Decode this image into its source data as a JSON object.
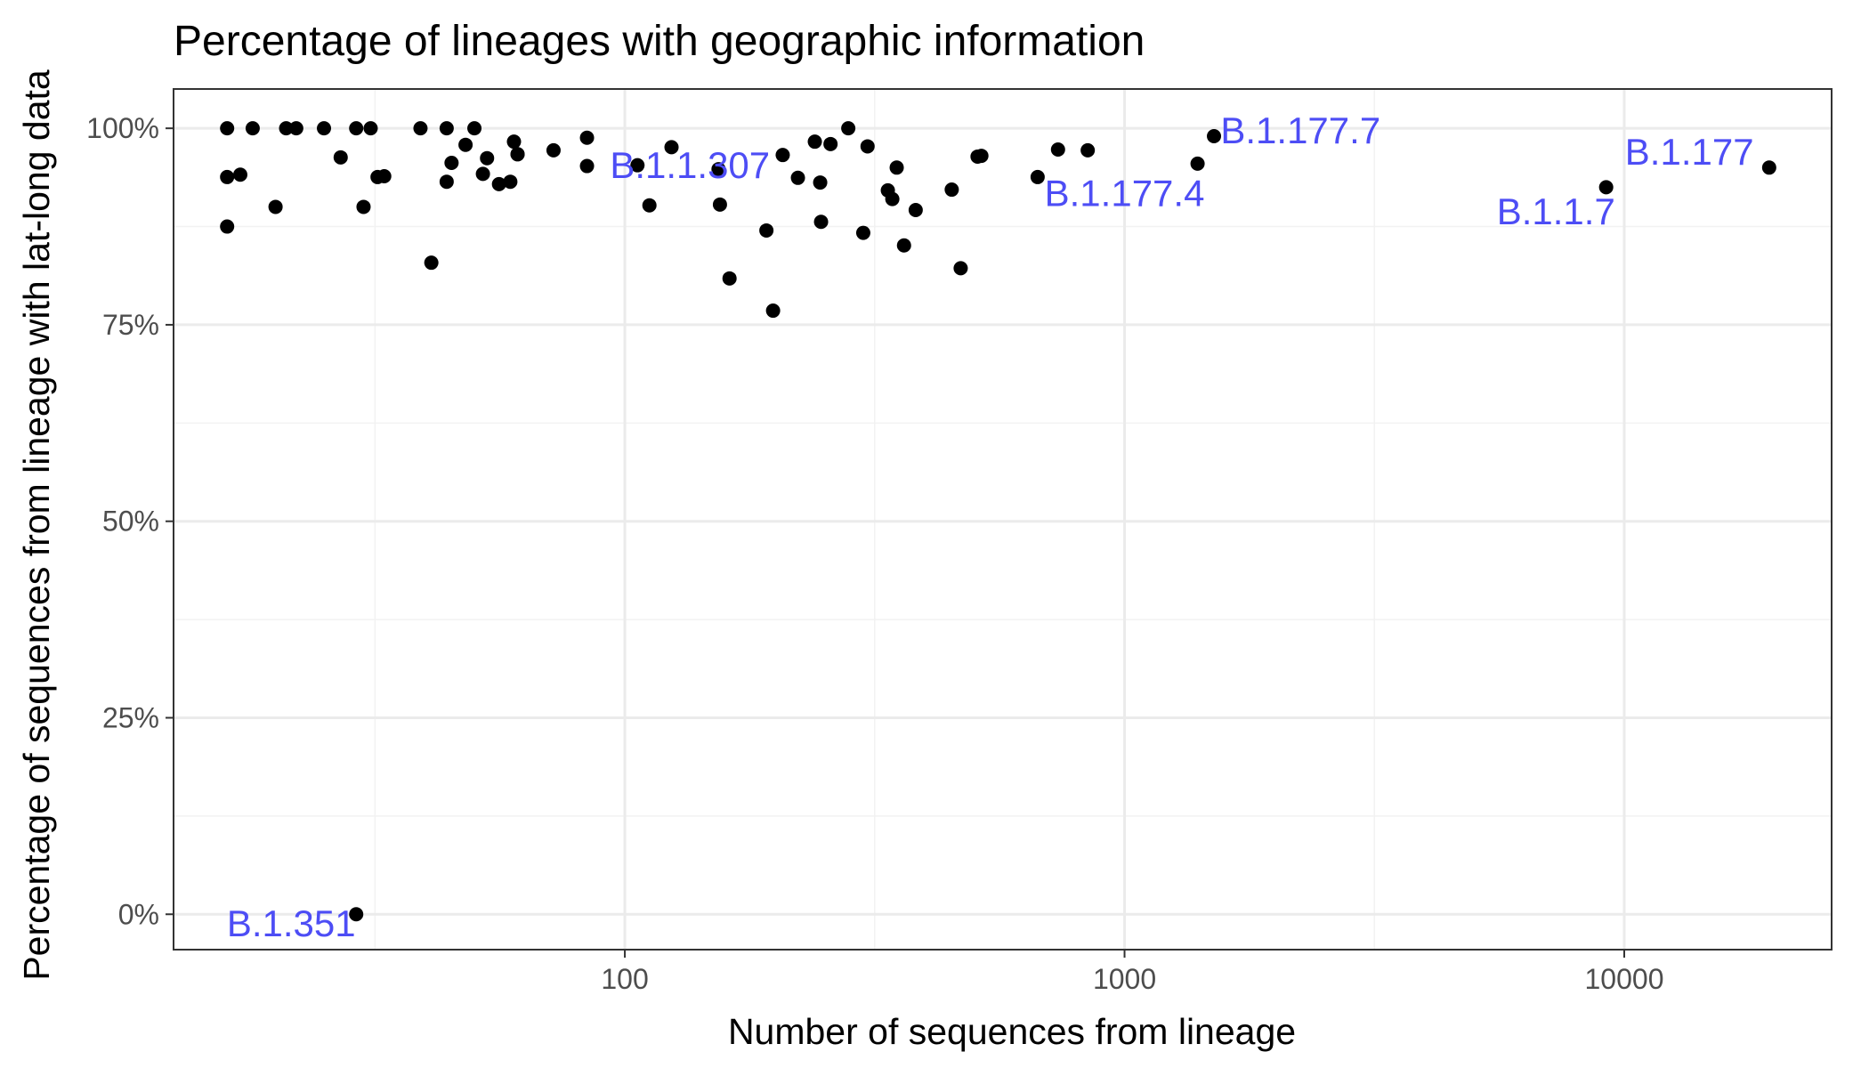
{
  "chart_data": {
    "type": "scatter",
    "title": "Percentage of lineages with geographic information",
    "xlabel": "Number of sequences from lineage",
    "ylabel": "Percentage of sequences from lineage with lat-long data",
    "x_scale": "log10",
    "xlim": [
      12.5,
      26000
    ],
    "ylim": [
      -4.5,
      105
    ],
    "x_ticks": [
      100,
      1000,
      10000
    ],
    "x_tick_labels": [
      "100",
      "1000",
      "10000"
    ],
    "y_ticks": [
      0,
      25,
      50,
      75,
      100
    ],
    "y_tick_labels": [
      "0%",
      "25%",
      "50%",
      "75%",
      "100%"
    ],
    "grid": true,
    "theme": "bw",
    "point_color": "#000000",
    "annotation_color": "#4d4df5",
    "points": [
      {
        "x": 16,
        "y": 100
      },
      {
        "x": 16,
        "y": 93.8
      },
      {
        "x": 16,
        "y": 87.5
      },
      {
        "x": 17,
        "y": 94.1
      },
      {
        "x": 18,
        "y": 100
      },
      {
        "x": 20,
        "y": 90
      },
      {
        "x": 21,
        "y": 100
      },
      {
        "x": 22,
        "y": 100
      },
      {
        "x": 25,
        "y": 100
      },
      {
        "x": 27,
        "y": 96.3
      },
      {
        "x": 29,
        "y": 100
      },
      {
        "x": 30,
        "y": 90
      },
      {
        "x": 31,
        "y": 100
      },
      {
        "x": 32,
        "y": 93.8
      },
      {
        "x": 33,
        "y": 93.9
      },
      {
        "x": 39,
        "y": 100
      },
      {
        "x": 41,
        "y": 82.9
      },
      {
        "x": 44,
        "y": 100
      },
      {
        "x": 44,
        "y": 93.2
      },
      {
        "x": 45,
        "y": 95.6
      },
      {
        "x": 48,
        "y": 97.9
      },
      {
        "x": 50,
        "y": 100
      },
      {
        "x": 52,
        "y": 94.2
      },
      {
        "x": 53,
        "y": 96.2
      },
      {
        "x": 56,
        "y": 92.9
      },
      {
        "x": 59,
        "y": 93.2
      },
      {
        "x": 60,
        "y": 98.3
      },
      {
        "x": 61,
        "y": 96.7
      },
      {
        "x": 61,
        "y": 96.7
      },
      {
        "x": 72,
        "y": 97.2
      },
      {
        "x": 84,
        "y": 98.8
      },
      {
        "x": 84,
        "y": 95.2
      },
      {
        "x": 106,
        "y": 95.3
      },
      {
        "x": 112,
        "y": 90.2
      },
      {
        "x": 124,
        "y": 97.6
      },
      {
        "x": 154,
        "y": 94.8
      },
      {
        "x": 155,
        "y": 90.3
      },
      {
        "x": 162,
        "y": 80.9
      },
      {
        "x": 192,
        "y": 87
      },
      {
        "x": 198,
        "y": 76.8
      },
      {
        "x": 207,
        "y": 96.6
      },
      {
        "x": 222,
        "y": 93.7
      },
      {
        "x": 240,
        "y": 98.3
      },
      {
        "x": 246,
        "y": 93.1
      },
      {
        "x": 247,
        "y": 88.1
      },
      {
        "x": 258,
        "y": 98
      },
      {
        "x": 280,
        "y": 100
      },
      {
        "x": 300,
        "y": 86.7
      },
      {
        "x": 306,
        "y": 97.7
      },
      {
        "x": 336,
        "y": 92.1
      },
      {
        "x": 343,
        "y": 91
      },
      {
        "x": 350,
        "y": 95
      },
      {
        "x": 362,
        "y": 85.1
      },
      {
        "x": 382,
        "y": 89.6
      },
      {
        "x": 451,
        "y": 92.2
      },
      {
        "x": 470,
        "y": 82.2
      },
      {
        "x": 508,
        "y": 96.4
      },
      {
        "x": 517,
        "y": 96.5
      },
      {
        "x": 670,
        "y": 93.8
      },
      {
        "x": 736,
        "y": 97.3
      },
      {
        "x": 844,
        "y": 97.2
      },
      {
        "x": 1400,
        "y": 95.5
      },
      {
        "x": 1510,
        "y": 99
      },
      {
        "x": 9200,
        "y": 92.5
      },
      {
        "x": 19500,
        "y": 95
      },
      {
        "x": 29,
        "y": 0
      }
    ],
    "annotations": [
      {
        "label": "B.1.1.307",
        "x": 135,
        "y": 95.4,
        "dx": 0,
        "dy": 0
      },
      {
        "label": "B.1.177.4",
        "x": 1000,
        "y": 91.8,
        "dx": 0,
        "dy": 0
      },
      {
        "label": "B.1.177.7",
        "x": 2250,
        "y": 99.8,
        "dx": 0,
        "dy": 0
      },
      {
        "label": "B.1.177",
        "x": 13500,
        "y": 97.1,
        "dx": 0,
        "dy": 0
      },
      {
        "label": "B.1.1.7",
        "x": 7300,
        "y": 89.5,
        "dx": 0,
        "dy": 0
      },
      {
        "label": "B.1.351",
        "x": 21.5,
        "y": -1.1,
        "dx": 0,
        "dy": 0
      }
    ]
  }
}
